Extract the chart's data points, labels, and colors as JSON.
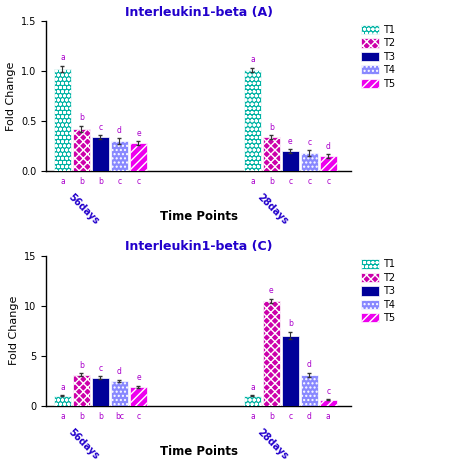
{
  "chart_A": {
    "title": "Interleukin1-beta (A)",
    "ylabel": "Fold Change",
    "xlabel": "Time Points",
    "ylim": [
      0,
      1.5
    ],
    "yticks": [
      0.0,
      0.5,
      1.0,
      1.5
    ],
    "yticklabels": [
      "0.0",
      "0.5",
      "1.0",
      "1.5"
    ],
    "groups": [
      "56days",
      "28days"
    ],
    "group_positions": [
      0.9,
      2.3
    ],
    "bars": [
      {
        "label": "T1",
        "color": "#00b3a4",
        "hatch": "oooo",
        "values": [
          1.02,
          1.01
        ],
        "errors": [
          0.03,
          0.02
        ],
        "sig_top": [
          "a",
          "a"
        ],
        "sig_bot": [
          "a",
          "a"
        ]
      },
      {
        "label": "T2",
        "color": "#cc00aa",
        "hatch": "xxxx",
        "values": [
          0.42,
          0.34
        ],
        "errors": [
          0.03,
          0.02
        ],
        "sig_top": [
          "b",
          "b"
        ],
        "sig_bot": [
          "b",
          "b"
        ]
      },
      {
        "label": "T3",
        "color": "#000099",
        "hatch": "",
        "values": [
          0.34,
          0.2
        ],
        "errors": [
          0.02,
          0.02
        ],
        "sig_top": [
          "c",
          "e"
        ],
        "sig_bot": [
          "b",
          "c"
        ]
      },
      {
        "label": "T4",
        "color": "#8888ff",
        "hatch": "....",
        "values": [
          0.3,
          0.18
        ],
        "errors": [
          0.03,
          0.03
        ],
        "sig_top": [
          "d",
          "c"
        ],
        "sig_bot": [
          "c",
          "c"
        ]
      },
      {
        "label": "T5",
        "color": "#ee00ee",
        "hatch": "////",
        "values": [
          0.28,
          0.15
        ],
        "errors": [
          0.02,
          0.02
        ],
        "sig_top": [
          "e",
          "d"
        ],
        "sig_bot": [
          "c",
          "c"
        ]
      }
    ]
  },
  "chart_C": {
    "title": "Interleukin1-beta (C)",
    "ylabel": "Fold Change",
    "xlabel": "Time Points",
    "ylim": [
      0,
      15
    ],
    "yticks": [
      0,
      5,
      10,
      15
    ],
    "yticklabels": [
      "0",
      "5",
      "10",
      "15"
    ],
    "groups": [
      "56days",
      "28days"
    ],
    "group_positions": [
      0.9,
      2.3
    ],
    "bars": [
      {
        "label": "T1",
        "color": "#00b3a4",
        "hatch": "oooo",
        "values": [
          1.0,
          1.0
        ],
        "errors": [
          0.05,
          0.05
        ],
        "sig_top": [
          "a",
          "a"
        ],
        "sig_bot": [
          "a",
          "a"
        ]
      },
      {
        "label": "T2",
        "color": "#cc00aa",
        "hatch": "xxxx",
        "values": [
          3.1,
          10.5
        ],
        "errors": [
          0.15,
          0.2
        ],
        "sig_top": [
          "b",
          "e"
        ],
        "sig_bot": [
          "b",
          "b"
        ]
      },
      {
        "label": "T3",
        "color": "#000099",
        "hatch": "",
        "values": [
          2.8,
          7.0
        ],
        "errors": [
          0.15,
          0.35
        ],
        "sig_top": [
          "c",
          "b"
        ],
        "sig_bot": [
          "b",
          "c"
        ]
      },
      {
        "label": "T4",
        "color": "#8888ff",
        "hatch": "....",
        "values": [
          2.5,
          3.1
        ],
        "errors": [
          0.12,
          0.18
        ],
        "sig_top": [
          "d",
          "d"
        ],
        "sig_bot": [
          "bc",
          "d"
        ]
      },
      {
        "label": "T5",
        "color": "#ee00ee",
        "hatch": "////",
        "values": [
          1.9,
          0.6
        ],
        "errors": [
          0.08,
          0.05
        ],
        "sig_top": [
          "e",
          "c"
        ],
        "sig_bot": [
          "c",
          "a"
        ]
      }
    ]
  },
  "sig_color": "#aa00cc",
  "title_color": "#2200cc",
  "xlabel_color": "#000000",
  "ylabel_color": "#000000",
  "group_label_color": "#2200cc",
  "bar_width": 0.13,
  "bar_edge_color": "#ffffff"
}
